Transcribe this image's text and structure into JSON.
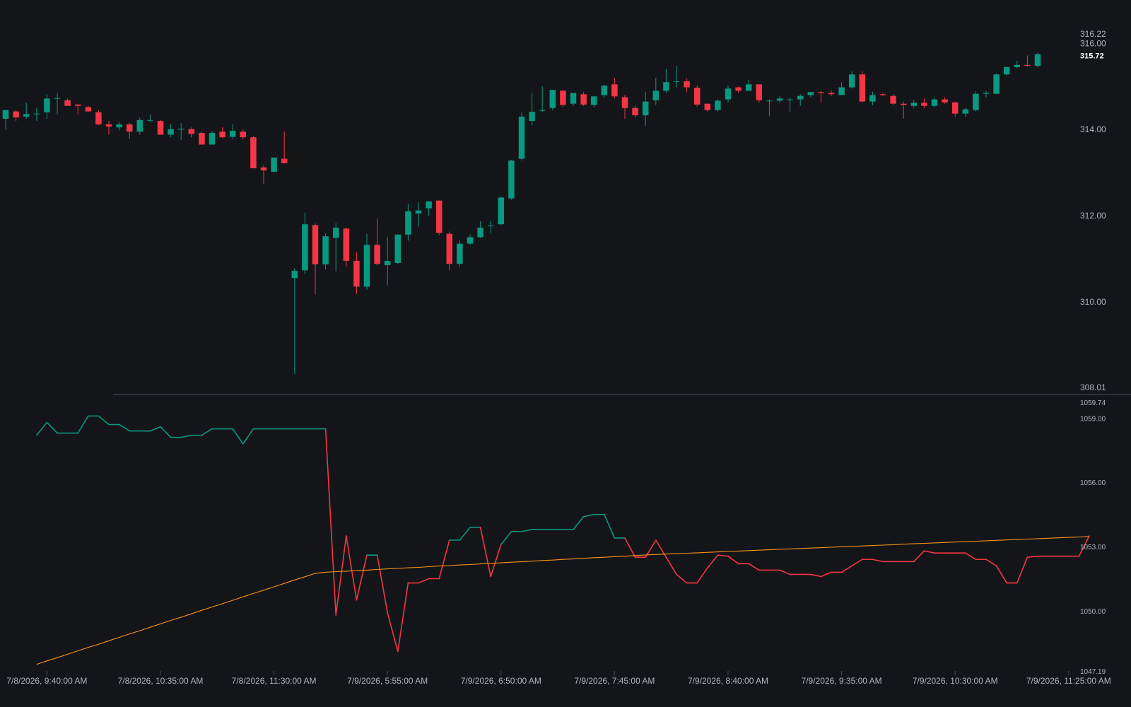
{
  "chart_data": [
    {
      "type": "candlestick",
      "colors": {
        "up": "#089981",
        "down": "#f23645"
      },
      "ylim": [
        308.01,
        316.22
      ],
      "current_price": "315.72",
      "price_axis_labels": [
        "316.22",
        "316.00",
        "315.72",
        "314.00",
        "312.00",
        "310.00",
        "308.01"
      ],
      "price_axis_values": [
        316.22,
        316.0,
        315.72,
        314.0,
        312.0,
        310.0,
        308.01
      ],
      "candles": [
        {
          "o": 314.25,
          "h": 314.45,
          "l": 314.0,
          "c": 314.45
        },
        {
          "o": 314.42,
          "h": 314.45,
          "l": 314.2,
          "c": 314.28
        },
        {
          "o": 314.3,
          "h": 314.62,
          "l": 314.25,
          "c": 314.36
        },
        {
          "o": 314.36,
          "h": 314.5,
          "l": 314.2,
          "c": 314.37
        },
        {
          "o": 314.4,
          "h": 314.82,
          "l": 314.25,
          "c": 314.72
        },
        {
          "o": 314.72,
          "h": 314.85,
          "l": 314.35,
          "c": 314.73
        },
        {
          "o": 314.68,
          "h": 314.72,
          "l": 314.55,
          "c": 314.55
        },
        {
          "o": 314.58,
          "h": 314.6,
          "l": 314.35,
          "c": 314.55
        },
        {
          "o": 314.52,
          "h": 314.55,
          "l": 314.42,
          "c": 314.42
        },
        {
          "o": 314.4,
          "h": 314.45,
          "l": 314.1,
          "c": 314.12
        },
        {
          "o": 314.12,
          "h": 314.2,
          "l": 313.88,
          "c": 314.07
        },
        {
          "o": 314.05,
          "h": 314.18,
          "l": 313.98,
          "c": 314.12
        },
        {
          "o": 314.12,
          "h": 314.15,
          "l": 313.78,
          "c": 313.95
        },
        {
          "o": 313.95,
          "h": 314.28,
          "l": 313.88,
          "c": 314.22
        },
        {
          "o": 314.22,
          "h": 314.35,
          "l": 314.18,
          "c": 314.22
        },
        {
          "o": 314.2,
          "h": 314.22,
          "l": 313.88,
          "c": 313.88
        },
        {
          "o": 313.88,
          "h": 314.12,
          "l": 313.82,
          "c": 314.01
        },
        {
          "o": 314.0,
          "h": 314.15,
          "l": 313.75,
          "c": 314.02
        },
        {
          "o": 314.01,
          "h": 314.05,
          "l": 313.82,
          "c": 313.9
        },
        {
          "o": 313.92,
          "h": 313.95,
          "l": 313.65,
          "c": 313.65
        },
        {
          "o": 313.65,
          "h": 313.97,
          "l": 313.65,
          "c": 313.92
        },
        {
          "o": 313.95,
          "h": 314.05,
          "l": 313.8,
          "c": 313.82
        },
        {
          "o": 313.83,
          "h": 314.12,
          "l": 313.78,
          "c": 313.97
        },
        {
          "o": 313.95,
          "h": 314.0,
          "l": 313.78,
          "c": 313.82
        },
        {
          "o": 313.82,
          "h": 313.85,
          "l": 313.1,
          "c": 313.1
        },
        {
          "o": 313.12,
          "h": 313.18,
          "l": 312.73,
          "c": 313.05
        },
        {
          "o": 313.02,
          "h": 313.35,
          "l": 313.0,
          "c": 313.35
        },
        {
          "o": 313.32,
          "h": 313.95,
          "l": 313.22,
          "c": 313.22
        },
        {
          "o": 310.55,
          "h": 310.78,
          "l": 308.32,
          "c": 310.72
        },
        {
          "o": 310.73,
          "h": 312.07,
          "l": 310.65,
          "c": 311.8
        },
        {
          "o": 311.78,
          "h": 311.82,
          "l": 310.17,
          "c": 310.87
        },
        {
          "o": 310.87,
          "h": 311.58,
          "l": 310.75,
          "c": 311.52
        },
        {
          "o": 311.48,
          "h": 311.83,
          "l": 310.71,
          "c": 311.72
        },
        {
          "o": 311.7,
          "h": 311.72,
          "l": 310.82,
          "c": 310.95
        },
        {
          "o": 310.95,
          "h": 311.15,
          "l": 310.18,
          "c": 310.35
        },
        {
          "o": 310.35,
          "h": 311.58,
          "l": 310.28,
          "c": 311.32
        },
        {
          "o": 311.32,
          "h": 311.93,
          "l": 310.85,
          "c": 310.88
        },
        {
          "o": 310.85,
          "h": 311.5,
          "l": 310.38,
          "c": 310.95
        },
        {
          "o": 310.9,
          "h": 311.56,
          "l": 310.88,
          "c": 311.56
        },
        {
          "o": 311.56,
          "h": 312.28,
          "l": 311.42,
          "c": 312.1
        },
        {
          "o": 312.05,
          "h": 312.32,
          "l": 311.75,
          "c": 312.12
        },
        {
          "o": 312.17,
          "h": 312.34,
          "l": 312.0,
          "c": 312.33
        },
        {
          "o": 312.35,
          "h": 312.35,
          "l": 311.55,
          "c": 311.6
        },
        {
          "o": 311.58,
          "h": 311.63,
          "l": 310.73,
          "c": 310.88
        },
        {
          "o": 310.88,
          "h": 311.43,
          "l": 310.8,
          "c": 311.35
        },
        {
          "o": 311.35,
          "h": 311.57,
          "l": 311.32,
          "c": 311.5
        },
        {
          "o": 311.5,
          "h": 311.87,
          "l": 311.48,
          "c": 311.72
        },
        {
          "o": 311.77,
          "h": 311.88,
          "l": 311.6,
          "c": 311.77
        },
        {
          "o": 311.8,
          "h": 312.45,
          "l": 311.78,
          "c": 312.42
        },
        {
          "o": 312.4,
          "h": 313.3,
          "l": 312.37,
          "c": 313.28
        },
        {
          "o": 313.32,
          "h": 314.4,
          "l": 313.28,
          "c": 314.3
        },
        {
          "o": 314.2,
          "h": 314.85,
          "l": 314.1,
          "c": 314.41
        },
        {
          "o": 314.45,
          "h": 315.0,
          "l": 314.4,
          "c": 314.45
        },
        {
          "o": 314.5,
          "h": 314.92,
          "l": 314.45,
          "c": 314.92
        },
        {
          "o": 314.9,
          "h": 314.92,
          "l": 314.52,
          "c": 314.57
        },
        {
          "o": 314.6,
          "h": 314.85,
          "l": 314.55,
          "c": 314.85
        },
        {
          "o": 314.82,
          "h": 314.87,
          "l": 314.55,
          "c": 314.58
        },
        {
          "o": 314.57,
          "h": 314.78,
          "l": 314.52,
          "c": 314.77
        },
        {
          "o": 314.8,
          "h": 315.03,
          "l": 314.75,
          "c": 315.02
        },
        {
          "o": 315.05,
          "h": 315.2,
          "l": 314.72,
          "c": 314.77
        },
        {
          "o": 314.75,
          "h": 314.8,
          "l": 314.25,
          "c": 314.5
        },
        {
          "o": 314.5,
          "h": 314.55,
          "l": 314.28,
          "c": 314.33
        },
        {
          "o": 314.33,
          "h": 314.88,
          "l": 314.08,
          "c": 314.65
        },
        {
          "o": 314.68,
          "h": 315.2,
          "l": 314.57,
          "c": 314.9
        },
        {
          "o": 314.9,
          "h": 315.4,
          "l": 314.85,
          "c": 315.1
        },
        {
          "o": 315.12,
          "h": 315.48,
          "l": 314.98,
          "c": 315.12
        },
        {
          "o": 315.12,
          "h": 315.18,
          "l": 314.87,
          "c": 314.98
        },
        {
          "o": 314.97,
          "h": 315.02,
          "l": 314.53,
          "c": 314.58
        },
        {
          "o": 314.6,
          "h": 314.6,
          "l": 314.42,
          "c": 314.45
        },
        {
          "o": 314.45,
          "h": 314.7,
          "l": 314.42,
          "c": 314.67
        },
        {
          "o": 314.7,
          "h": 315.02,
          "l": 314.63,
          "c": 314.95
        },
        {
          "o": 314.98,
          "h": 315.0,
          "l": 314.85,
          "c": 314.9
        },
        {
          "o": 314.9,
          "h": 315.15,
          "l": 314.9,
          "c": 315.05
        },
        {
          "o": 315.05,
          "h": 315.05,
          "l": 314.62,
          "c": 314.68
        },
        {
          "o": 314.67,
          "h": 314.7,
          "l": 314.32,
          "c": 314.67
        },
        {
          "o": 314.67,
          "h": 314.78,
          "l": 314.63,
          "c": 314.72
        },
        {
          "o": 314.7,
          "h": 314.75,
          "l": 314.4,
          "c": 314.7
        },
        {
          "o": 314.7,
          "h": 314.82,
          "l": 314.55,
          "c": 314.78
        },
        {
          "o": 314.8,
          "h": 314.87,
          "l": 314.75,
          "c": 314.87
        },
        {
          "o": 314.87,
          "h": 314.9,
          "l": 314.62,
          "c": 314.85
        },
        {
          "o": 314.85,
          "h": 314.9,
          "l": 314.78,
          "c": 314.82
        },
        {
          "o": 314.8,
          "h": 315.1,
          "l": 314.8,
          "c": 314.98
        },
        {
          "o": 314.98,
          "h": 315.35,
          "l": 314.95,
          "c": 315.28
        },
        {
          "o": 315.28,
          "h": 315.35,
          "l": 314.63,
          "c": 314.65
        },
        {
          "o": 314.65,
          "h": 314.88,
          "l": 314.57,
          "c": 314.8
        },
        {
          "o": 314.82,
          "h": 314.85,
          "l": 314.78,
          "c": 314.8
        },
        {
          "o": 314.78,
          "h": 314.82,
          "l": 314.57,
          "c": 314.6
        },
        {
          "o": 314.6,
          "h": 314.65,
          "l": 314.25,
          "c": 314.57
        },
        {
          "o": 314.55,
          "h": 314.68,
          "l": 314.5,
          "c": 314.62
        },
        {
          "o": 314.62,
          "h": 314.72,
          "l": 314.5,
          "c": 314.55
        },
        {
          "o": 314.55,
          "h": 314.75,
          "l": 314.52,
          "c": 314.7
        },
        {
          "o": 314.7,
          "h": 314.75,
          "l": 314.6,
          "c": 314.63
        },
        {
          "o": 314.63,
          "h": 314.65,
          "l": 314.3,
          "c": 314.37
        },
        {
          "o": 314.37,
          "h": 314.5,
          "l": 314.3,
          "c": 314.47
        },
        {
          "o": 314.45,
          "h": 314.88,
          "l": 314.42,
          "c": 314.83
        },
        {
          "o": 314.83,
          "h": 314.9,
          "l": 314.75,
          "c": 314.85
        },
        {
          "o": 314.83,
          "h": 315.3,
          "l": 314.82,
          "c": 315.28
        },
        {
          "o": 315.28,
          "h": 315.45,
          "l": 315.25,
          "c": 315.45
        },
        {
          "o": 315.45,
          "h": 315.6,
          "l": 315.42,
          "c": 315.5
        },
        {
          "o": 315.5,
          "h": 315.72,
          "l": 315.46,
          "c": 315.48
        },
        {
          "o": 315.48,
          "h": 315.78,
          "l": 315.45,
          "c": 315.75
        }
      ]
    },
    {
      "type": "line",
      "ylim": [
        1047.19,
        1059.74
      ],
      "axis_labels": [
        "1059.74",
        "1059.00",
        "1056.00",
        "1053.00",
        "1050.00",
        "1047.19"
      ],
      "axis_values": [
        1059.74,
        1059.0,
        1056.0,
        1053.0,
        1050.0,
        1047.19
      ],
      "x_start_index": 3,
      "series": [
        {
          "color": "#089981",
          "below_color": "#f23645",
          "values": [
            1058.2,
            1058.8,
            1058.3,
            1058.3,
            1058.3,
            1059.1,
            1059.1,
            1058.7,
            1058.7,
            1058.4,
            1058.4,
            1058.4,
            1058.6,
            1058.1,
            1058.1,
            1058.2,
            1058.2,
            1058.5,
            1058.5,
            1058.5,
            1057.8,
            1058.5,
            1058.5,
            1058.5,
            1058.5,
            1058.5,
            1058.5,
            1058.5,
            1058.5,
            1049.8,
            1053.5,
            1050.5,
            1052.6,
            1052.6,
            1049.9,
            1048.1,
            1051.3,
            1051.3,
            1051.5,
            1051.5,
            1053.3,
            1053.3,
            1053.9,
            1053.9,
            1051.6,
            1053.1,
            1053.7,
            1053.7,
            1053.8,
            1053.8,
            1053.8,
            1053.8,
            1053.8,
            1054.4,
            1054.5,
            1054.5,
            1053.4,
            1053.4,
            1052.5,
            1052.5,
            1053.3,
            1052.5,
            1051.7,
            1051.3,
            1051.3,
            1052.0,
            1052.6,
            1052.55,
            1052.2,
            1052.2,
            1051.9,
            1051.9,
            1051.9,
            1051.7,
            1051.7,
            1051.7,
            1051.6,
            1051.8,
            1051.8,
            1052.1,
            1052.4,
            1052.4,
            1052.3,
            1052.3,
            1052.3,
            1052.3,
            1052.8,
            1052.7,
            1052.7,
            1052.7,
            1052.7,
            1052.4,
            1052.4,
            1052.1,
            1051.3,
            1051.3,
            1052.5,
            1052.55,
            1052.55,
            1052.55,
            1052.55,
            1052.55,
            1053.5
          ]
        },
        {
          "color": "#f7931a",
          "values": [
            1047.5,
            1047.66,
            1047.81,
            1047.97,
            1048.13,
            1048.29,
            1048.44,
            1048.6,
            1048.76,
            1048.92,
            1049.07,
            1049.23,
            1049.39,
            1049.55,
            1049.7,
            1049.86,
            1050.02,
            1050.18,
            1050.33,
            1050.49,
            1050.65,
            1050.81,
            1050.96,
            1051.12,
            1051.28,
            1051.44,
            1051.59,
            1051.75,
            1051.8,
            1051.83,
            1051.85,
            1051.88,
            1051.9,
            1051.93,
            1051.96,
            1051.98,
            1052.01,
            1052.03,
            1052.06,
            1052.09,
            1052.11,
            1052.14,
            1052.16,
            1052.19,
            1052.22,
            1052.24,
            1052.27,
            1052.29,
            1052.32,
            1052.35,
            1052.37,
            1052.4,
            1052.42,
            1052.45,
            1052.48,
            1052.5,
            1052.53,
            1052.55,
            1052.58,
            1052.61,
            1052.63,
            1052.65,
            1052.67,
            1052.69,
            1052.71,
            1052.73,
            1052.75,
            1052.77,
            1052.79,
            1052.81,
            1052.83,
            1052.85,
            1052.87,
            1052.89,
            1052.91,
            1052.93,
            1052.95,
            1052.97,
            1052.99,
            1053.01,
            1053.03,
            1053.05,
            1053.07,
            1053.09,
            1053.11,
            1053.13,
            1053.15,
            1053.17,
            1053.19,
            1053.21,
            1053.23,
            1053.25,
            1053.27,
            1053.29,
            1053.31,
            1053.33,
            1053.35,
            1053.37,
            1053.39,
            1053.41,
            1053.43,
            1053.45,
            1053.47
          ]
        }
      ]
    }
  ],
  "time_axis": {
    "labels": [
      "7/8/2026, 9:40:00 AM",
      "7/8/2026, 10:35:00 AM",
      "7/8/2026, 11:30:00 AM",
      "7/9/2026, 5:55:00 AM",
      "7/9/2026, 6:50:00 AM",
      "7/9/2026, 7:45:00 AM",
      "7/9/2026, 8:40:00 AM",
      "7/9/2026, 9:35:00 AM",
      "7/9/2026, 10:30:00 AM",
      "7/9/2026, 11:25:00 AM"
    ],
    "candle_index": [
      4,
      15,
      26,
      37,
      48,
      59,
      70,
      81,
      92,
      103
    ]
  },
  "colors": {
    "background": "#141519",
    "text": "#b2b5be",
    "separator": "#4a4e59"
  }
}
